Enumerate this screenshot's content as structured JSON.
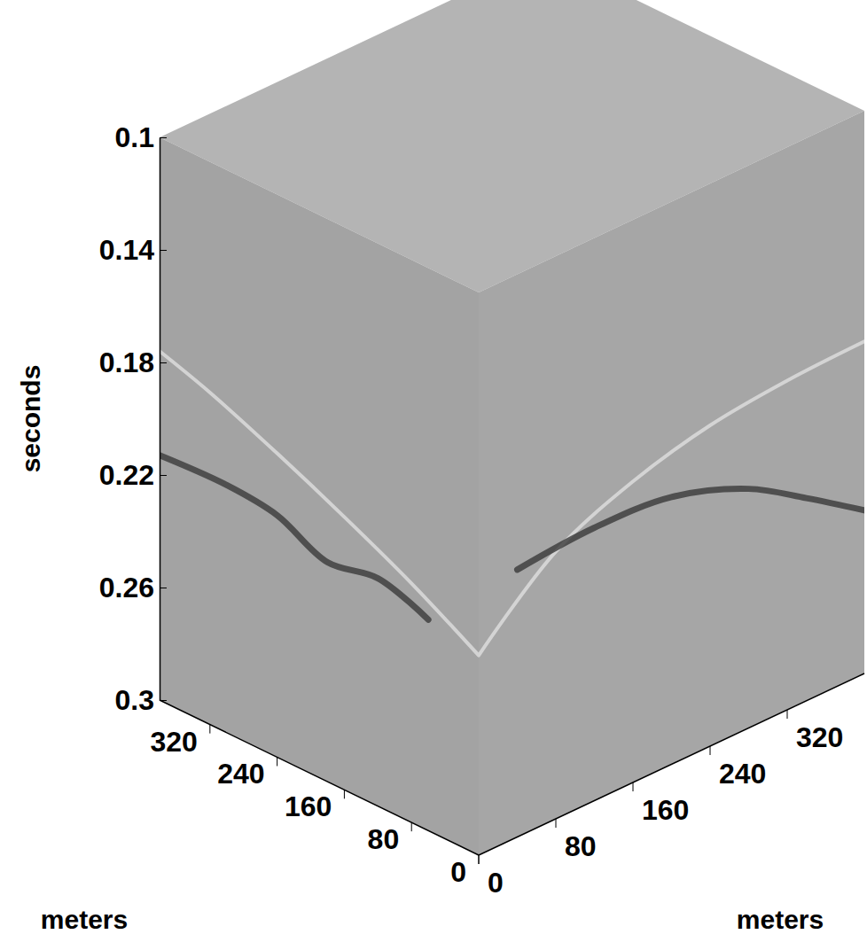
{
  "chart_data": {
    "type": "cube",
    "z_label": "seconds",
    "x_label": "meters",
    "y_label": "meters",
    "zlim": [
      0.1,
      0.3
    ],
    "zticks": [
      0.1,
      0.14,
      0.18,
      0.22,
      0.26,
      0.3
    ],
    "xlim": [
      0,
      380
    ],
    "xticks": [
      0,
      80,
      160,
      240,
      320
    ],
    "ylim": [
      0,
      400
    ],
    "yticks": [
      0,
      80,
      160,
      240,
      320
    ],
    "xz_series": [
      {
        "color": "#d6d6d6",
        "x": [
          0,
          80,
          160,
          240,
          320,
          380
        ],
        "values": [
          0.229,
          0.215,
          0.203,
          0.192,
          0.182,
          0.176
        ]
      },
      {
        "color": "#3a3a3a",
        "x": [
          60,
          120,
          180,
          240,
          300,
          380
        ],
        "values": [
          0.225,
          0.219,
          0.222,
          0.214,
          0.212,
          0.213
        ]
      }
    ],
    "yz_series": [
      {
        "color": "#d6d6d6",
        "x": [
          0,
          80,
          160,
          240,
          320,
          400
        ],
        "values": [
          0.229,
          0.205,
          0.193,
          0.186,
          0.183,
          0.182
        ]
      },
      {
        "color": "#3a3a3a",
        "x": [
          40,
          120,
          200,
          280,
          340,
          400
        ],
        "values": [
          0.205,
          0.203,
          0.205,
          0.215,
          0.228,
          0.242
        ]
      }
    ]
  }
}
